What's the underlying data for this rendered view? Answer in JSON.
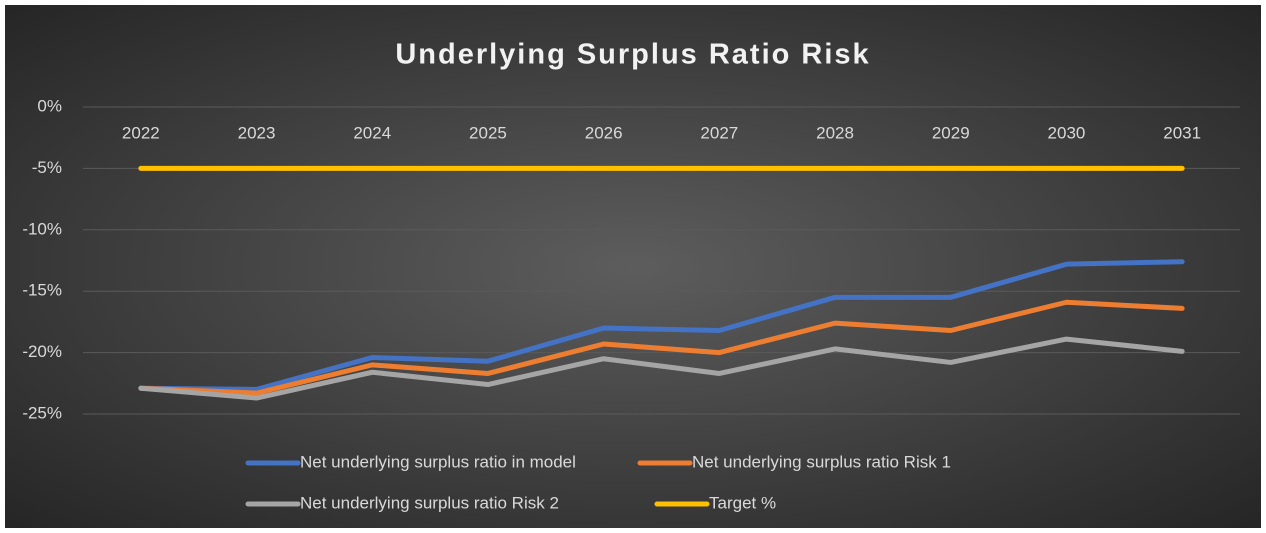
{
  "chart_data": {
    "type": "line",
    "title": "Underlying Surplus Ratio Risk",
    "categories": [
      "2022",
      "2023",
      "2024",
      "2025",
      "2026",
      "2027",
      "2028",
      "2029",
      "2030",
      "2031"
    ],
    "series": [
      {
        "name": "Net underlying surplus ratio in model",
        "color": "#4472c4",
        "values": [
          -22.9,
          -23.0,
          -20.4,
          -20.7,
          -18.0,
          -18.2,
          -15.5,
          -15.5,
          -12.8,
          -12.6
        ]
      },
      {
        "name": "Net underlying surplus ratio Risk 1",
        "color": "#ed7d31",
        "values": [
          -22.9,
          -23.3,
          -21.0,
          -21.7,
          -19.3,
          -20.0,
          -17.6,
          -18.2,
          -15.9,
          -16.4
        ]
      },
      {
        "name": "Net underlying surplus ratio Risk 2",
        "color": "#a5a5a5",
        "values": [
          -22.9,
          -23.7,
          -21.6,
          -22.6,
          -20.5,
          -21.7,
          -19.7,
          -20.8,
          -18.9,
          -19.9
        ]
      },
      {
        "name": "Target %",
        "color": "#ffc000",
        "values": [
          -5,
          -5,
          -5,
          -5,
          -5,
          -5,
          -5,
          -5,
          -5,
          -5
        ]
      }
    ],
    "ylim": [
      -25,
      0
    ],
    "yticks": [
      {
        "value": 0,
        "label": "0%"
      },
      {
        "value": -5,
        "label": "-5%"
      },
      {
        "value": -10,
        "label": "-10%"
      },
      {
        "value": -15,
        "label": "-15%"
      },
      {
        "value": -20,
        "label": "-20%"
      },
      {
        "value": -25,
        "label": "-25%"
      }
    ],
    "grid": true,
    "legend": "bottom"
  }
}
